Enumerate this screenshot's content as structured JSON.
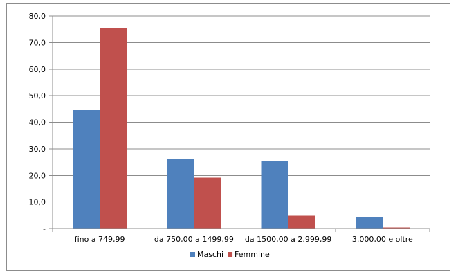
{
  "chart_data": {
    "type": "bar",
    "categories": [
      "fino a 749,99",
      "da 750,00 a 1499,99",
      "da 1500,00 a 2.999,99",
      "3.000,00 e oltre"
    ],
    "series": [
      {
        "name": "Maschi",
        "values": [
          44.5,
          26.0,
          25.3,
          4.3
        ],
        "color": "#4f81bd"
      },
      {
        "name": "Femmine",
        "values": [
          75.6,
          19.2,
          4.8,
          0.4
        ],
        "color": "#c0504d"
      }
    ],
    "y_ticks": [
      {
        "value": 0,
        "label": "-"
      },
      {
        "value": 10,
        "label": "10,0"
      },
      {
        "value": 20,
        "label": "20,0"
      },
      {
        "value": 30,
        "label": "30,0"
      },
      {
        "value": 40,
        "label": "40,0"
      },
      {
        "value": 50,
        "label": "50,0"
      },
      {
        "value": 60,
        "label": "60,0"
      },
      {
        "value": 70,
        "label": "70,0"
      },
      {
        "value": 80,
        "label": "80,0"
      }
    ],
    "ylim": [
      0,
      80
    ],
    "grid": true,
    "legend": "bottom-center",
    "title": "",
    "xlabel": "",
    "ylabel": ""
  }
}
